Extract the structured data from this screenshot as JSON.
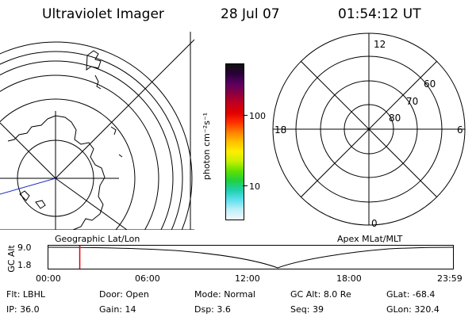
{
  "header": {
    "instrument": "Ultraviolet Imager",
    "date": "28 Jul 07",
    "time": "01:54:12 UT"
  },
  "left_map": {
    "caption": "Geographic Lat/Lon"
  },
  "colorbar": {
    "unit_label": "photon cm⁻²s⁻¹",
    "tick_labels": [
      "100",
      "10"
    ],
    "colors": [
      "#101010",
      "#2a0038",
      "#5a0060",
      "#8a0040",
      "#c00020",
      "#e00000",
      "#ff3000",
      "#ff8000",
      "#ffc000",
      "#ffee00",
      "#c8f000",
      "#60e000",
      "#20d040",
      "#20d0b0",
      "#60e0f0",
      "#c0f0f8",
      "#f0f8ff"
    ]
  },
  "right_map": {
    "caption": "Apex MLat/MLT",
    "mlt_labels": [
      "12",
      "18",
      "6",
      "0"
    ],
    "mlat_labels": [
      "60",
      "70",
      "80"
    ]
  },
  "timeline": {
    "axis_title": "GC Alt",
    "y_labels": [
      "9.0",
      "1.8"
    ],
    "x_labels": [
      "00:00",
      "06:00",
      "12:00",
      "18:00",
      "23:59"
    ],
    "current_marker_time": "01:54"
  },
  "info": {
    "row1": [
      {
        "key": "Flt:",
        "value": "LBHL"
      },
      {
        "key": "Door:",
        "value": "Open"
      },
      {
        "key": "Mode:",
        "value": "Normal"
      },
      {
        "key": "GC Alt:",
        "value": "8.0 Re"
      },
      {
        "key": "GLat:",
        "value": "-68.4"
      }
    ],
    "row2": [
      {
        "key": "IP:",
        "value": "36.0"
      },
      {
        "key": "Gain:",
        "value": "14"
      },
      {
        "key": "Dsp:",
        "value": "3.6"
      },
      {
        "key": "Seq:",
        "value": "39"
      },
      {
        "key": "GLon:",
        "value": "320.4"
      }
    ]
  }
}
